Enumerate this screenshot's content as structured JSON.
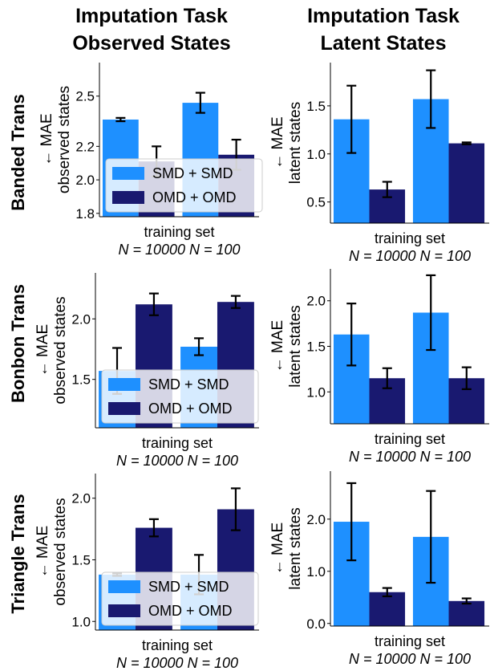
{
  "columns": [
    {
      "title_line1": "Imputation Task",
      "title_line2": "Observed States"
    },
    {
      "title_line1": "Imputation Task",
      "title_line2": "Latent States"
    }
  ],
  "rows": [
    {
      "label": "Banded Trans"
    },
    {
      "label": "Bonbon Trans"
    },
    {
      "label": "Triangle Trans"
    }
  ],
  "colors": {
    "smd": "#1e90ff",
    "omd": "#191970",
    "error_bar": "#000000"
  },
  "legend": {
    "smd": "SMD + SMD",
    "omd": "OMD + OMD"
  },
  "chart_data": [
    {
      "type": "bar",
      "row": "Banded Trans",
      "column": "Observed States",
      "categories": [
        "N = 10000",
        "N = 100"
      ],
      "series": [
        {
          "name": "SMD + SMD",
          "values": [
            2.36,
            2.46
          ],
          "err": [
            0.01,
            0.06
          ]
        },
        {
          "name": "OMD + OMD",
          "values": [
            2.11,
            2.15
          ],
          "err": [
            0.09,
            0.09
          ]
        }
      ],
      "ylabel_line1": "← MAE",
      "ylabel_line2": "observed states",
      "xlabel_line1": "training set",
      "xlabel_line2": "N = 10000  N = 100",
      "ylim": [
        1.78,
        2.7
      ],
      "yticks": [
        1.8,
        2.0,
        2.2,
        2.5
      ],
      "ytick_labels": [
        "1.8",
        "2.0",
        "2.2",
        "2.5"
      ],
      "legend": true,
      "legend_position": "lower-left"
    },
    {
      "type": "bar",
      "row": "Banded Trans",
      "column": "Latent States",
      "categories": [
        "N = 10000",
        "N = 100"
      ],
      "series": [
        {
          "name": "SMD + SMD",
          "values": [
            1.36,
            1.57
          ],
          "err": [
            0.35,
            0.3
          ]
        },
        {
          "name": "OMD + OMD",
          "values": [
            0.63,
            1.11
          ],
          "err": [
            0.08,
            0.01
          ]
        }
      ],
      "ylabel_line1": "← MAE",
      "ylabel_line2": "latent states",
      "xlabel_line1": "training set",
      "xlabel_line2": "N = 10000  N = 100",
      "ylim": [
        0.28,
        1.95
      ],
      "yticks": [
        0.5,
        1.0,
        1.5
      ],
      "ytick_labels": [
        "0.5",
        "1.0",
        "1.5"
      ]
    },
    {
      "type": "bar",
      "row": "Bonbon Trans",
      "column": "Observed States",
      "categories": [
        "N = 10000",
        "N = 100"
      ],
      "series": [
        {
          "name": "SMD + SMD",
          "values": [
            1.57,
            1.77
          ],
          "err": [
            0.19,
            0.07
          ]
        },
        {
          "name": "OMD + OMD",
          "values": [
            2.12,
            2.14
          ],
          "err": [
            0.09,
            0.05
          ]
        }
      ],
      "ylabel_line1": "← MAE",
      "ylabel_line2": "observed states",
      "xlabel_line1": "training set",
      "xlabel_line2": "N = 10000  N = 100",
      "ylim": [
        1.1,
        2.38
      ],
      "yticks": [
        1.5,
        2.0
      ],
      "ytick_labels": [
        "1.5",
        "2.0"
      ],
      "legend": true,
      "legend_position": "lower-left"
    },
    {
      "type": "bar",
      "row": "Bonbon Trans",
      "column": "Latent States",
      "categories": [
        "N = 10000",
        "N = 100"
      ],
      "series": [
        {
          "name": "SMD + SMD",
          "values": [
            1.63,
            1.87
          ],
          "err": [
            0.34,
            0.41
          ]
        },
        {
          "name": "OMD + OMD",
          "values": [
            1.15,
            1.15
          ],
          "err": [
            0.11,
            0.12
          ]
        }
      ],
      "ylabel_line1": "← MAE",
      "ylabel_line2": "latent states",
      "xlabel_line1": "training set",
      "xlabel_line2": "N = 10000  N = 100",
      "ylim": [
        0.65,
        2.35
      ],
      "yticks": [
        1.0,
        1.5,
        2.0
      ],
      "ytick_labels": [
        "1.0",
        "1.5",
        "2.0"
      ]
    },
    {
      "type": "bar",
      "row": "Triangle Trans",
      "column": "Observed States",
      "categories": [
        "N = 10000",
        "N = 100"
      ],
      "series": [
        {
          "name": "SMD + SMD",
          "values": [
            1.38,
            1.38
          ],
          "err": [
            0.01,
            0.16
          ]
        },
        {
          "name": "OMD + OMD",
          "values": [
            1.76,
            1.91
          ],
          "err": [
            0.07,
            0.17
          ]
        }
      ],
      "ylabel_line1": "← MAE",
      "ylabel_line2": "observed states",
      "xlabel_line1": "training set",
      "xlabel_line2": "N = 10000  N = 100",
      "ylim": [
        0.93,
        2.2
      ],
      "yticks": [
        1.0,
        1.5,
        2.0
      ],
      "ytick_labels": [
        "1.0",
        "1.5",
        "2.0"
      ],
      "legend": true,
      "legend_position": "lower-left"
    },
    {
      "type": "bar",
      "row": "Triangle Trans",
      "column": "Latent States",
      "categories": [
        "N = 10000",
        "N = 100"
      ],
      "series": [
        {
          "name": "SMD + SMD",
          "values": [
            1.95,
            1.66
          ],
          "err": [
            0.74,
            0.88
          ]
        },
        {
          "name": "OMD + OMD",
          "values": [
            0.6,
            0.43
          ],
          "err": [
            0.08,
            0.05
          ]
        }
      ],
      "ylabel_line1": "← MAE",
      "ylabel_line2": "latent states",
      "xlabel_line1": "training set",
      "xlabel_line2": "N = 10000  N = 100",
      "ylim": [
        -0.05,
        2.92
      ],
      "yticks": [
        0.0,
        1.0,
        2.0
      ],
      "ytick_labels": [
        "0.0",
        "1.0",
        "2.0"
      ]
    }
  ]
}
